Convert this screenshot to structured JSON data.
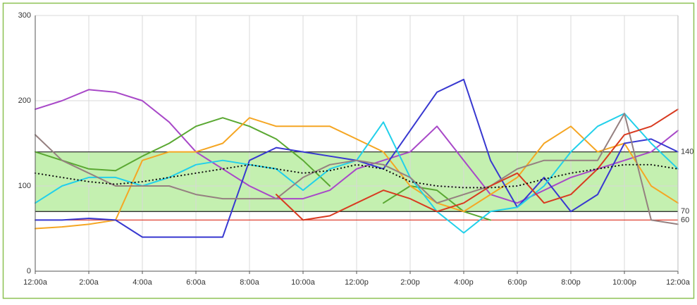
{
  "chart_data": {
    "type": "line",
    "x": [
      0,
      1,
      2,
      3,
      4,
      5,
      6,
      7,
      8,
      9,
      10,
      11,
      12,
      13,
      14,
      15,
      16,
      17,
      18,
      19,
      20,
      21,
      22,
      23,
      24
    ],
    "xlim": [
      0,
      24
    ],
    "xticks": [
      {
        "value": 0,
        "label": "12:00a"
      },
      {
        "value": 2,
        "label": "2:00a"
      },
      {
        "value": 4,
        "label": "4:00a"
      },
      {
        "value": 6,
        "label": "6:00a"
      },
      {
        "value": 8,
        "label": "8:00a"
      },
      {
        "value": 10,
        "label": "10:00a"
      },
      {
        "value": 12,
        "label": "12:00p"
      },
      {
        "value": 14,
        "label": "2:00p"
      },
      {
        "value": 16,
        "label": "4:00p"
      },
      {
        "value": 18,
        "label": "6:00p"
      },
      {
        "value": 20,
        "label": "8:00p"
      },
      {
        "value": 22,
        "label": "10:00p"
      },
      {
        "value": 24,
        "label": "12:00a"
      }
    ],
    "ylim": [
      0,
      300
    ],
    "yticks": [
      0,
      100,
      200,
      300
    ],
    "grid": true,
    "reference_lines": [
      {
        "value": 140,
        "color": "#333333"
      },
      {
        "value": 70,
        "color": "#333333"
      },
      {
        "value": 60,
        "color": "#e04030"
      }
    ],
    "shaded_range_color": "#c4f0b0",
    "series": [
      {
        "color": "#a848c8",
        "values": [
          190,
          200,
          213,
          210,
          200,
          175,
          140,
          120,
          100,
          85,
          85,
          95,
          120,
          130,
          140,
          170,
          130,
          90,
          80,
          95,
          110,
          120,
          130,
          140,
          165
        ]
      },
      {
        "color": "#5aa832",
        "values": [
          140,
          130,
          120,
          118,
          135,
          150,
          170,
          180,
          170,
          155,
          130,
          100,
          null,
          80,
          100,
          95,
          70,
          60,
          null,
          null,
          null,
          null,
          null,
          null,
          null
        ]
      },
      {
        "color": "#f5a623",
        "values": [
          50,
          52,
          55,
          60,
          130,
          140,
          140,
          150,
          180,
          170,
          170,
          170,
          155,
          140,
          100,
          80,
          70,
          90,
          110,
          150,
          170,
          140,
          150,
          100,
          80
        ]
      },
      {
        "color": "#3838d0",
        "values": [
          60,
          60,
          62,
          60,
          40,
          40,
          40,
          40,
          130,
          145,
          140,
          135,
          130,
          120,
          165,
          210,
          225,
          130,
          75,
          110,
          70,
          90,
          150,
          155,
          140
        ]
      },
      {
        "color": "#22d0ea",
        "values": [
          80,
          100,
          110,
          110,
          100,
          110,
          125,
          130,
          125,
          120,
          95,
          120,
          130,
          175,
          110,
          70,
          45,
          70,
          75,
          100,
          140,
          170,
          185,
          150,
          120
        ]
      },
      {
        "color": "#958080",
        "values": [
          160,
          130,
          115,
          100,
          100,
          100,
          90,
          85,
          85,
          85,
          110,
          125,
          130,
          125,
          110,
          80,
          90,
          100,
          120,
          130,
          130,
          130,
          185,
          60,
          55
        ]
      },
      {
        "color": "#d83a20",
        "values": [
          null,
          null,
          null,
          null,
          null,
          null,
          null,
          null,
          null,
          90,
          60,
          65,
          80,
          95,
          85,
          70,
          80,
          100,
          115,
          80,
          90,
          120,
          160,
          170,
          190
        ]
      },
      {
        "color": "#111111",
        "style": "dotted",
        "values": [
          115,
          110,
          105,
          102,
          105,
          110,
          115,
          120,
          125,
          120,
          115,
          118,
          125,
          120,
          105,
          100,
          98,
          98,
          100,
          108,
          115,
          120,
          125,
          125,
          120
        ]
      }
    ]
  }
}
